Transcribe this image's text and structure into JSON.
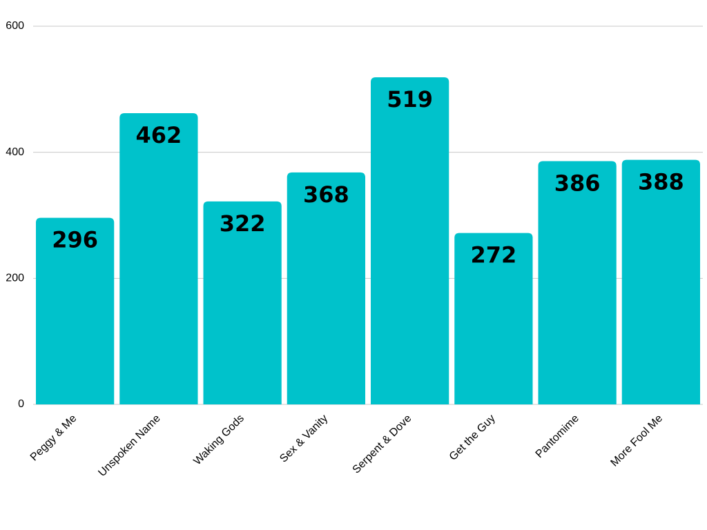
{
  "chart_data": {
    "type": "bar",
    "categories": [
      "Peggy & Me",
      "Unspoken Name",
      "Waking Gods",
      "Sex & Vanity",
      "Serpent & Dove",
      "Get the Guy",
      "Pantomime",
      "More Fool Me"
    ],
    "values": [
      296,
      462,
      322,
      368,
      519,
      272,
      386,
      388
    ],
    "color": "#00c2cb",
    "ylim": [
      0,
      600
    ],
    "yticks": [
      0,
      200,
      400,
      600
    ],
    "grid": true
  }
}
